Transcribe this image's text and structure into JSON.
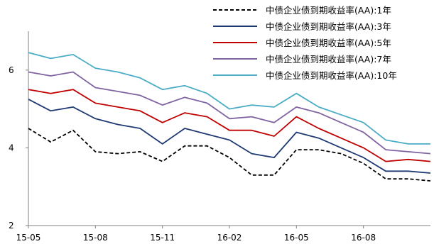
{
  "chart_data": {
    "type": "line",
    "title": "",
    "xlabel": "",
    "ylabel": "",
    "ylim": [
      2,
      7
    ],
    "yticks": [
      2,
      4,
      6
    ],
    "xticks": [
      "15-05",
      "15-08",
      "15-11",
      "16-02",
      "16-05",
      "16-08"
    ],
    "x": [
      "15-05",
      "15-06",
      "15-07",
      "15-08",
      "15-09",
      "15-10",
      "15-11",
      "15-12",
      "16-01",
      "16-02",
      "16-03",
      "16-04",
      "16-05",
      "16-06",
      "16-07",
      "16-08",
      "16-09",
      "16-10",
      "16-11"
    ],
    "legend_position": "top-right",
    "series": [
      {
        "name": "中债企业债到期收益率(AA):1年",
        "color": "#000000",
        "dash": true,
        "values": [
          4.5,
          4.15,
          4.45,
          3.9,
          3.85,
          3.9,
          3.65,
          4.05,
          4.05,
          3.75,
          3.3,
          3.3,
          3.95,
          3.95,
          3.85,
          3.6,
          3.2,
          3.2,
          3.15
        ]
      },
      {
        "name": "中债企业债到期收益率(AA):3年",
        "color": "#1f3a73",
        "dash": false,
        "values": [
          5.25,
          4.95,
          5.05,
          4.75,
          4.6,
          4.5,
          4.1,
          4.5,
          4.35,
          4.2,
          3.85,
          3.75,
          4.4,
          4.25,
          4.0,
          3.75,
          3.4,
          3.4,
          3.35
        ]
      },
      {
        "name": "中债企业债到期收益率(AA):5年",
        "color": "#c00000",
        "dash": false,
        "values": [
          5.5,
          5.4,
          5.5,
          5.15,
          5.05,
          4.95,
          4.65,
          4.9,
          4.8,
          4.45,
          4.45,
          4.3,
          4.8,
          4.5,
          4.25,
          4.0,
          3.65,
          3.7,
          3.65
        ]
      },
      {
        "name": "中债企业债到期收益率(AA):7年",
        "color": "#8064a2",
        "dash": false,
        "values": [
          5.95,
          5.85,
          5.95,
          5.55,
          5.45,
          5.35,
          5.1,
          5.3,
          5.15,
          4.75,
          4.8,
          4.65,
          5.05,
          4.9,
          4.65,
          4.4,
          3.95,
          3.9,
          3.85
        ]
      },
      {
        "name": "中债企业债到期收益率(AA):10年",
        "color": "#4bacc6",
        "dash": false,
        "values": [
          6.45,
          6.3,
          6.4,
          6.05,
          5.95,
          5.8,
          5.5,
          5.6,
          5.4,
          5.0,
          5.1,
          5.05,
          5.4,
          5.05,
          4.85,
          4.65,
          4.2,
          4.1,
          4.1
        ]
      }
    ]
  }
}
